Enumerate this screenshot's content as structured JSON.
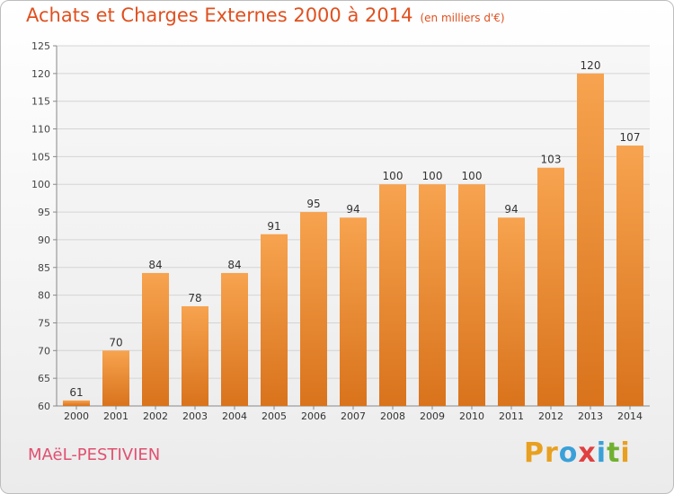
{
  "header": {
    "title": "Achats et Charges Externes 2000 à 2014",
    "unit": "(en milliers d'€)"
  },
  "footer": {
    "commune": "MAëL-PESTIVIEN",
    "brand_letters": [
      "P",
      "r",
      "o",
      "x",
      "i",
      "t",
      "i"
    ],
    "brand_colors": [
      "#e8a020",
      "#e8a020",
      "#3aa0d8",
      "#e04040",
      "#3aa0d8",
      "#70b030",
      "#e8a020"
    ]
  },
  "colors": {
    "title": "#e0501f",
    "commune": "#e05070",
    "bar_top": "#f7a34f",
    "bar_bottom": "#d9731c"
  },
  "chart_data": {
    "type": "bar",
    "categories": [
      "2000",
      "2001",
      "2002",
      "2003",
      "2004",
      "2005",
      "2006",
      "2007",
      "2008",
      "2009",
      "2010",
      "2011",
      "2012",
      "2013",
      "2014"
    ],
    "values": [
      61,
      70,
      84,
      78,
      84,
      91,
      95,
      94,
      100,
      100,
      100,
      94,
      103,
      120,
      107
    ],
    "ylim": [
      60,
      125
    ],
    "yticks": [
      60,
      65,
      70,
      75,
      80,
      85,
      90,
      95,
      100,
      105,
      110,
      115,
      120,
      125
    ],
    "grid": true,
    "data_labels": true
  }
}
